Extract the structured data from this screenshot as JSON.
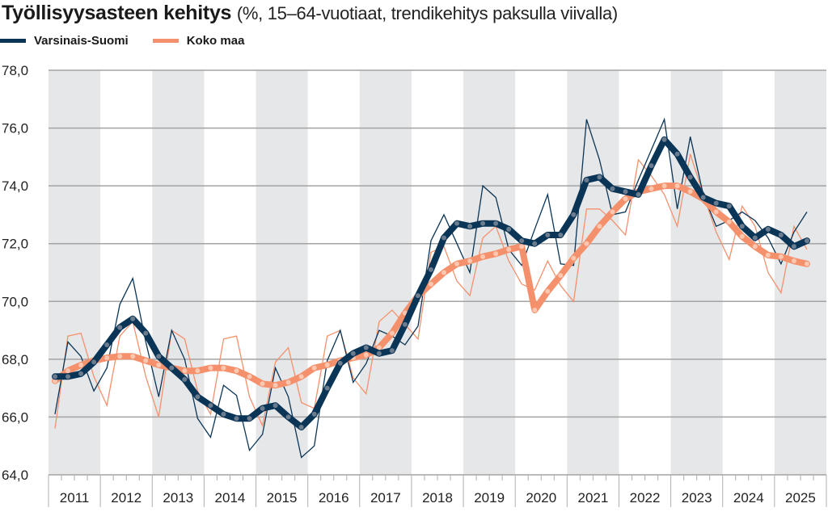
{
  "title": {
    "main": "Työllisyysasteen kehitys",
    "sub": "(%, 15–64-vuotiaat, trendikehitys paksulla viivalla)"
  },
  "legend": [
    {
      "label": "Varsinais-Suomi",
      "color": "#0b3556"
    },
    {
      "label": "Koko maa",
      "color": "#f4916c"
    }
  ],
  "chart_data": {
    "type": "line",
    "title": "Työllisyysasteen kehitys (%, 15–64-vuotiaat, trendikehitys paksulla viivalla)",
    "xlabel": "",
    "ylabel": "",
    "frequency": "quarterly, 2011Q1–2025Q3",
    "ylim": [
      64,
      78
    ],
    "yticks": [
      "64,0",
      "66,0",
      "68,0",
      "70,0",
      "72,0",
      "74,0",
      "76,0",
      "78,0"
    ],
    "ytick_values": [
      64,
      66,
      68,
      70,
      72,
      74,
      76,
      78
    ],
    "years": [
      "2011",
      "2012",
      "2013",
      "2014",
      "2015",
      "2016",
      "2017",
      "2018",
      "2019",
      "2020",
      "2021",
      "2022",
      "2023",
      "2024",
      "2025"
    ],
    "grid": true,
    "legend_position": "top-left",
    "series": [
      {
        "name": "Varsinais-Suomi",
        "kind": "raw",
        "color": "#0b3556",
        "values": [
          66.1,
          68.6,
          68.1,
          66.9,
          67.7,
          69.9,
          70.8,
          68.6,
          66.7,
          69.0,
          68.0,
          65.95,
          65.3,
          67.1,
          66.75,
          64.85,
          65.4,
          67.7,
          66.7,
          64.6,
          65.0,
          67.95,
          69.0,
          67.2,
          67.85,
          69.0,
          68.8,
          68.5,
          69.15,
          72.1,
          73.0,
          72.0,
          71.0,
          74.0,
          73.6,
          71.8,
          71.25,
          72.5,
          73.7,
          71.3,
          71.25,
          76.3,
          74.9,
          73.0,
          73.1,
          74.2,
          75.25,
          76.3,
          73.2,
          75.7,
          73.7,
          72.6,
          72.8,
          73.1,
          72.8,
          72.2,
          71.3,
          72.4,
          73.1
        ]
      },
      {
        "name": "Koko maa",
        "kind": "raw",
        "color": "#f4916c",
        "values": [
          65.6,
          68.8,
          68.9,
          67.4,
          66.4,
          68.8,
          69.3,
          67.4,
          66.0,
          69.0,
          68.7,
          66.9,
          66.1,
          68.7,
          68.8,
          66.7,
          65.7,
          67.9,
          68.4,
          66.5,
          66.3,
          68.8,
          69.0,
          67.35,
          66.8,
          69.3,
          69.7,
          69.2,
          68.7,
          71.7,
          71.9,
          70.7,
          70.2,
          72.2,
          72.6,
          71.4,
          70.6,
          70.4,
          71.4,
          70.55,
          70.0,
          73.2,
          73.2,
          72.8,
          72.3,
          74.9,
          74.35,
          73.7,
          72.6,
          75.1,
          73.7,
          72.4,
          71.45,
          73.3,
          72.6,
          71.0,
          70.3,
          72.6,
          71.8
        ]
      },
      {
        "name": "Varsinais-Suomi trendi",
        "kind": "trend",
        "color": "#0b3556",
        "values": [
          67.4,
          67.4,
          67.5,
          67.9,
          68.5,
          69.1,
          69.4,
          68.9,
          68.1,
          67.7,
          67.3,
          66.7,
          66.4,
          66.1,
          65.95,
          65.95,
          66.3,
          66.4,
          66.0,
          65.65,
          66.1,
          67.0,
          67.86,
          68.2,
          68.4,
          68.2,
          68.3,
          69.2,
          70.2,
          71.1,
          72.2,
          72.7,
          72.6,
          72.7,
          72.7,
          72.5,
          72.1,
          72.0,
          72.3,
          72.3,
          73.0,
          74.2,
          74.3,
          73.9,
          73.8,
          73.7,
          74.7,
          75.6,
          75.1,
          74.3,
          73.6,
          73.4,
          73.3,
          72.6,
          72.2,
          72.5,
          72.3,
          71.9,
          72.1
        ]
      },
      {
        "name": "Koko maa trendi",
        "kind": "trend",
        "color": "#f4916c",
        "values": [
          67.25,
          67.6,
          67.8,
          67.95,
          68.05,
          68.1,
          68.1,
          67.95,
          67.8,
          67.7,
          67.6,
          67.6,
          67.7,
          67.7,
          67.6,
          67.4,
          67.15,
          67.1,
          67.2,
          67.4,
          67.7,
          67.8,
          67.95,
          68.05,
          68.15,
          68.4,
          68.9,
          69.6,
          70.2,
          70.6,
          71.0,
          71.3,
          71.4,
          71.55,
          71.65,
          71.8,
          71.9,
          69.7,
          70.35,
          70.9,
          71.5,
          72.0,
          72.6,
          73.1,
          73.55,
          73.8,
          73.9,
          74.0,
          74.0,
          73.8,
          73.55,
          73.1,
          72.75,
          72.25,
          71.9,
          71.6,
          71.55,
          71.4,
          71.3
        ]
      }
    ]
  }
}
